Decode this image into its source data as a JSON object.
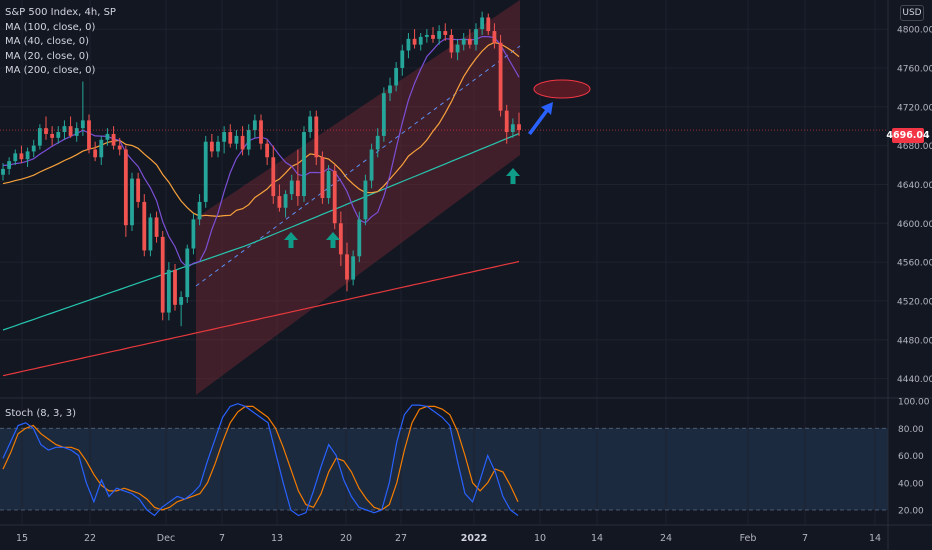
{
  "header": {
    "symbol_line": "S&P 500 Index, 4h, SP",
    "indicators": [
      "MA (100, close, 0)",
      "MA (40, close, 0)",
      "MA (20, close, 0)",
      "MA (200, close, 0)"
    ],
    "currency": "USD",
    "last_price": "4696.04"
  },
  "oscillator": {
    "label": "Stoch (8, 3, 3)",
    "ticks": [
      "100.00",
      "80.00",
      "60.00",
      "40.00",
      "20.00"
    ],
    "upper_band": 80,
    "lower_band": 20
  },
  "chart_data": {
    "type": "candlestick",
    "price_axis": {
      "min": 4420,
      "max": 4830,
      "ticks": [
        "4800.00",
        "4760.00",
        "4720.00",
        "4680.00",
        "4640.00",
        "4600.00",
        "4560.00",
        "4520.00",
        "4480.00",
        "4440.00"
      ]
    },
    "time_axis_labels": [
      "15",
      "22",
      "Dec",
      "7",
      "13",
      "20",
      "27",
      "2022",
      "10",
      "14",
      "24",
      "Feb",
      "7",
      "14"
    ],
    "last_price_value": 4696.04,
    "colors": {
      "up": "#26a69a",
      "down": "#f05350",
      "ma100": "#26c6b0",
      "ma40": "#f7a13c",
      "ma20": "#7b4fd6",
      "ma200": "#e8393d",
      "stoch_k": "#2962ff",
      "stoch_d": "#f57c00",
      "channel": "#7a2a35"
    },
    "candles": [
      [
        4650,
        4662,
        4644,
        4656
      ],
      [
        4656,
        4668,
        4650,
        4664
      ],
      [
        4664,
        4676,
        4660,
        4672
      ],
      [
        4672,
        4680,
        4662,
        4666
      ],
      [
        4666,
        4678,
        4658,
        4674
      ],
      [
        4674,
        4686,
        4668,
        4680
      ],
      [
        4680,
        4702,
        4676,
        4698
      ],
      [
        4698,
        4710,
        4686,
        4692
      ],
      [
        4692,
        4700,
        4680,
        4688
      ],
      [
        4688,
        4700,
        4682,
        4694
      ],
      [
        4694,
        4706,
        4686,
        4700
      ],
      [
        4700,
        4710,
        4688,
        4690
      ],
      [
        4690,
        4704,
        4684,
        4698
      ],
      [
        4698,
        4746,
        4690,
        4706
      ],
      [
        4706,
        4712,
        4672,
        4676
      ],
      [
        4676,
        4684,
        4664,
        4668
      ],
      [
        4668,
        4690,
        4660,
        4686
      ],
      [
        4686,
        4698,
        4680,
        4692
      ],
      [
        4692,
        4700,
        4676,
        4680
      ],
      [
        4680,
        4688,
        4670,
        4676
      ],
      [
        4676,
        4680,
        4586,
        4598
      ],
      [
        4598,
        4652,
        4592,
        4646
      ],
      [
        4646,
        4652,
        4616,
        4622
      ],
      [
        4622,
        4630,
        4566,
        4572
      ],
      [
        4572,
        4610,
        4566,
        4606
      ],
      [
        4606,
        4612,
        4580,
        4586
      ],
      [
        4586,
        4592,
        4500,
        4508
      ],
      [
        4508,
        4560,
        4500,
        4552
      ],
      [
        4552,
        4558,
        4510,
        4516
      ],
      [
        4516,
        4530,
        4494,
        4524
      ],
      [
        4524,
        4578,
        4518,
        4574
      ],
      [
        4574,
        4610,
        4568,
        4604
      ],
      [
        4604,
        4630,
        4598,
        4622
      ],
      [
        4622,
        4690,
        4616,
        4684
      ],
      [
        4684,
        4692,
        4668,
        4674
      ],
      [
        4674,
        4690,
        4668,
        4684
      ],
      [
        4684,
        4700,
        4672,
        4694
      ],
      [
        4694,
        4702,
        4678,
        4682
      ],
      [
        4682,
        4696,
        4676,
        4690
      ],
      [
        4690,
        4700,
        4670,
        4676
      ],
      [
        4676,
        4702,
        4670,
        4696
      ],
      [
        4696,
        4712,
        4688,
        4706
      ],
      [
        4706,
        4712,
        4676,
        4682
      ],
      [
        4682,
        4686,
        4660,
        4668
      ],
      [
        4668,
        4680,
        4620,
        4628
      ],
      [
        4628,
        4640,
        4612,
        4616
      ],
      [
        4616,
        4634,
        4606,
        4630
      ],
      [
        4630,
        4650,
        4624,
        4644
      ],
      [
        4644,
        4676,
        4618,
        4628
      ],
      [
        4628,
        4700,
        4622,
        4694
      ],
      [
        4694,
        4716,
        4688,
        4710
      ],
      [
        4710,
        4716,
        4660,
        4668
      ],
      [
        4668,
        4674,
        4620,
        4626
      ],
      [
        4626,
        4660,
        4620,
        4654
      ],
      [
        4654,
        4660,
        4594,
        4600
      ],
      [
        4600,
        4612,
        4556,
        4568
      ],
      [
        4568,
        4580,
        4530,
        4542
      ],
      [
        4542,
        4572,
        4536,
        4566
      ],
      [
        4566,
        4612,
        4560,
        4604
      ],
      [
        4604,
        4650,
        4598,
        4644
      ],
      [
        4644,
        4682,
        4636,
        4676
      ],
      [
        4676,
        4698,
        4668,
        4690
      ],
      [
        4690,
        4740,
        4684,
        4734
      ],
      [
        4734,
        4750,
        4726,
        4742
      ],
      [
        4742,
        4766,
        4736,
        4760
      ],
      [
        4760,
        4784,
        4752,
        4778
      ],
      [
        4778,
        4796,
        4770,
        4790
      ],
      [
        4790,
        4800,
        4780,
        4784
      ],
      [
        4784,
        4796,
        4778,
        4792
      ],
      [
        4792,
        4800,
        4786,
        4794
      ],
      [
        4794,
        4802,
        4786,
        4790
      ],
      [
        4790,
        4804,
        4784,
        4798
      ],
      [
        4798,
        4806,
        4788,
        4794
      ],
      [
        4794,
        4800,
        4770,
        4776
      ],
      [
        4776,
        4790,
        4768,
        4784
      ],
      [
        4784,
        4796,
        4778,
        4790
      ],
      [
        4790,
        4800,
        4780,
        4784
      ],
      [
        4784,
        4806,
        4778,
        4800
      ],
      [
        4800,
        4818,
        4794,
        4812
      ],
      [
        4812,
        4816,
        4794,
        4798
      ],
      [
        4798,
        4806,
        4780,
        4786
      ],
      [
        4786,
        4794,
        4710,
        4716
      ],
      [
        4716,
        4722,
        4682,
        4694
      ],
      [
        4694,
        4708,
        4688,
        4702
      ],
      [
        4702,
        4714,
        4690,
        4696
      ]
    ],
    "stoch_k": [
      58,
      70,
      82,
      84,
      80,
      68,
      64,
      66,
      66,
      64,
      60,
      40,
      26,
      42,
      30,
      36,
      34,
      32,
      28,
      20,
      16,
      22,
      26,
      30,
      28,
      32,
      38,
      56,
      72,
      88,
      96,
      98,
      96,
      92,
      88,
      84,
      62,
      40,
      20,
      16,
      18,
      34,
      52,
      68,
      60,
      42,
      30,
      22,
      20,
      18,
      20,
      40,
      70,
      90,
      97,
      97,
      96,
      92,
      88,
      82,
      56,
      32,
      26,
      42,
      60,
      48,
      30,
      20,
      16
    ],
    "stoch_d": [
      50,
      62,
      76,
      80,
      82,
      76,
      72,
      68,
      66,
      66,
      64,
      56,
      46,
      38,
      34,
      34,
      36,
      34,
      32,
      28,
      22,
      20,
      22,
      26,
      28,
      30,
      32,
      40,
      54,
      70,
      84,
      92,
      96,
      96,
      92,
      88,
      80,
      66,
      50,
      34,
      24,
      22,
      32,
      48,
      58,
      56,
      48,
      36,
      28,
      22,
      20,
      24,
      40,
      64,
      84,
      94,
      96,
      96,
      94,
      90,
      78,
      60,
      40,
      34,
      40,
      50,
      48,
      38,
      26
    ]
  }
}
